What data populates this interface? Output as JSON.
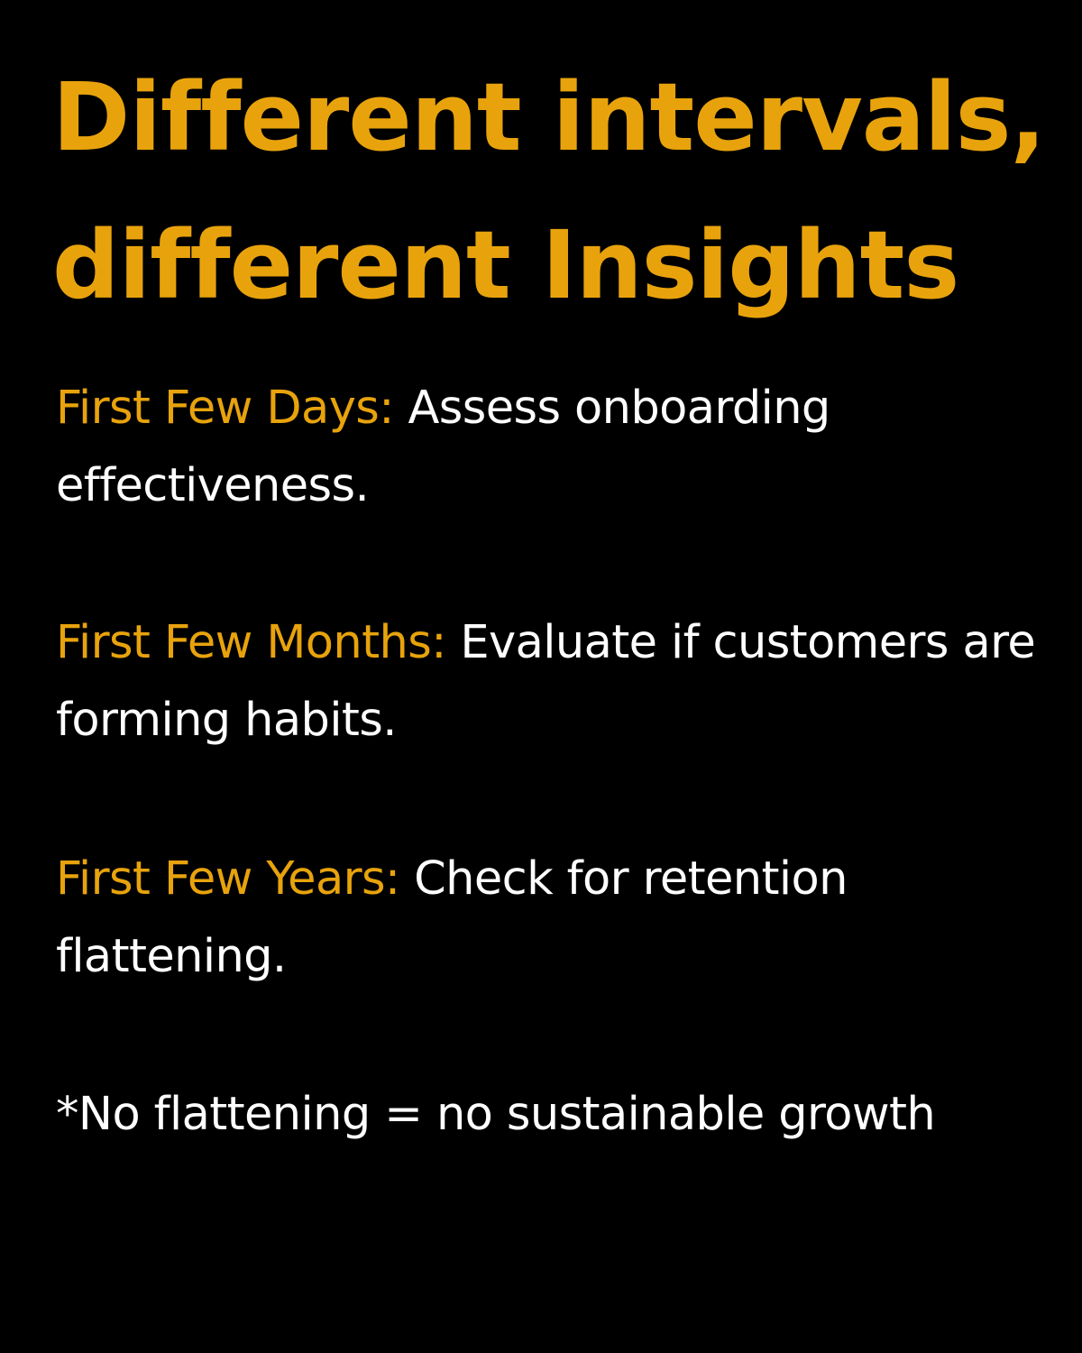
{
  "title": {
    "line1": "Different intervals,",
    "line2": "different Insights"
  },
  "items": [
    {
      "label": "First Few Days:",
      "text": "Assess onboarding effectiveness."
    },
    {
      "label": "First Few Months:",
      "text": "Evaluate if customers are forming habits."
    },
    {
      "label": "First Few Years:",
      "text": "Check for retention flattening."
    }
  ],
  "footnote": "*No flattening = no sustainable growth",
  "colors": {
    "background": "#000000",
    "accent": "#E8A30C",
    "text": "#FFFFFF"
  }
}
